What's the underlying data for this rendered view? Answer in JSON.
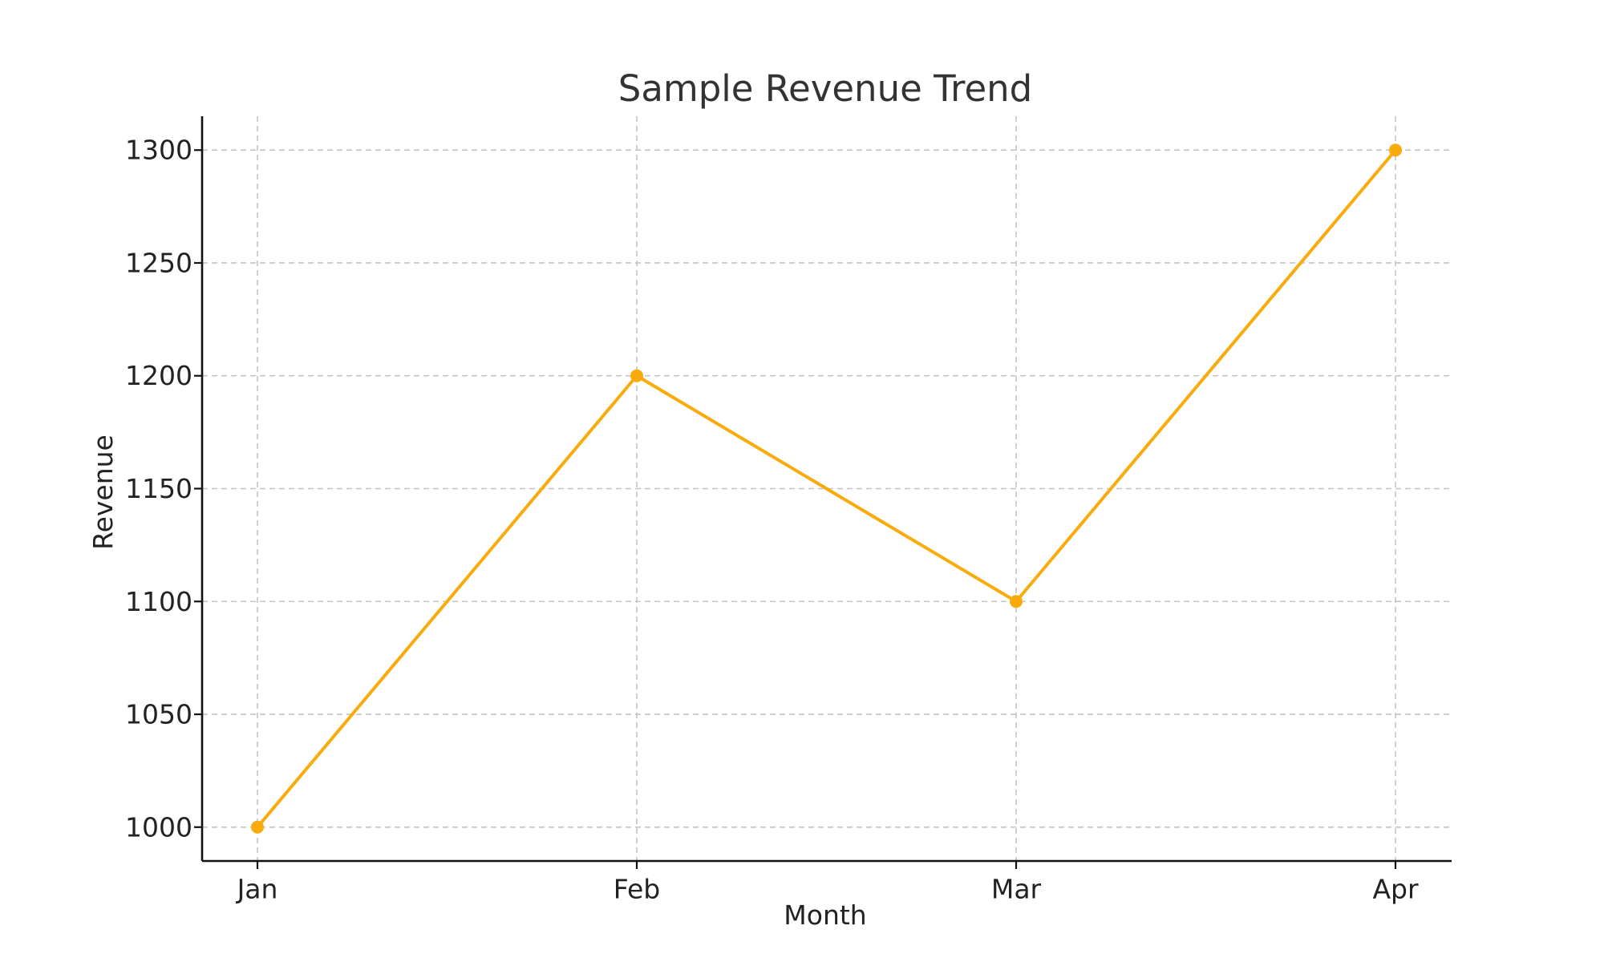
{
  "chart_data": {
    "type": "line",
    "title": "Sample Revenue Trend",
    "xlabel": "Month",
    "ylabel": "Revenue",
    "categories": [
      "Jan",
      "Feb",
      "Mar",
      "Apr"
    ],
    "series": [
      {
        "values": [
          1000,
          1200,
          1100,
          1300
        ],
        "color": "#F9AB0B"
      }
    ],
    "ylim": [
      985,
      1315
    ],
    "yticks": [
      1000,
      1050,
      1100,
      1150,
      1200,
      1250,
      1300
    ],
    "grid": true,
    "marker": "circle",
    "legend": "none"
  }
}
